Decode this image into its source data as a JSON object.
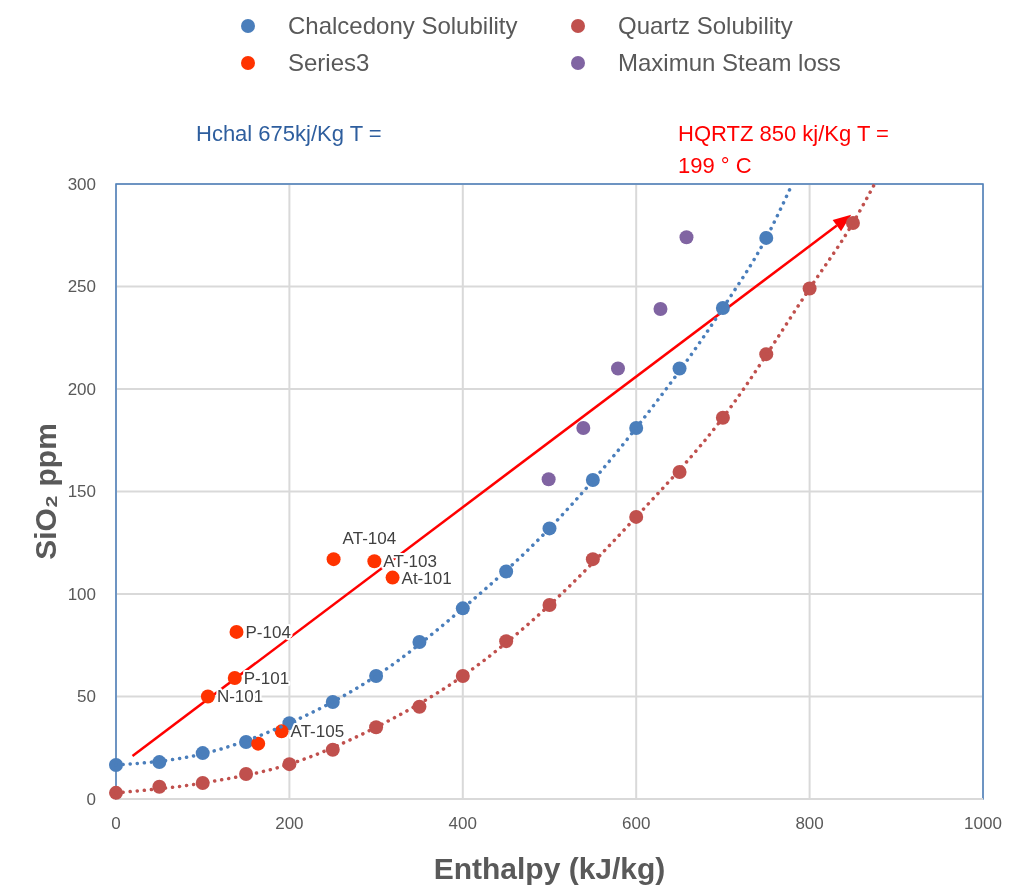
{
  "chart_data": {
    "type": "scatter",
    "xlabel": "Enthalpy (kJ/kg)",
    "ylabel": "SiO₂  ppm",
    "xlim": [
      0,
      1000
    ],
    "xticks": [
      0,
      200,
      400,
      600,
      800,
      1000
    ],
    "ylim": [
      0,
      300
    ],
    "yticks": [
      0,
      50,
      100,
      150,
      200,
      250,
      300
    ],
    "grid": true,
    "legend": "top",
    "marker": "circle",
    "annotations": [
      "Hchal 675kj/Kg  T =",
      "HQRTZ 850 kj/Kg  T = 199 ° C",
      {
        "text": "AT-104",
        "x": 251,
        "y": 117
      },
      {
        "text": "AT-103",
        "x": 298,
        "y": 116
      },
      {
        "text": "At-101",
        "x": 319,
        "y": 108
      },
      {
        "text": "P-104",
        "x": 139,
        "y": 81.5
      },
      {
        "text": "P-101",
        "x": 137,
        "y": 59
      },
      {
        "text": "N-101",
        "x": 106,
        "y": 50
      },
      {
        "text": "AT-105",
        "x": 191,
        "y": 33
      }
    ],
    "series": [
      {
        "name": "Chalcedony Solubility",
        "color": "#4a7ebb",
        "x": [
          0,
          50,
          100,
          150,
          200,
          250,
          300,
          350,
          400,
          450,
          500,
          550,
          600,
          650,
          700,
          750
        ],
        "values": [
          16.6,
          18,
          22.4,
          27.8,
          37,
          47.3,
          60,
          76.6,
          93,
          111,
          132,
          155.6,
          181,
          210,
          239.5,
          273.7
        ]
      },
      {
        "name": "Quartz Solubility",
        "color": "#c0504d",
        "x": [
          0,
          50,
          100,
          150,
          200,
          250,
          300,
          350,
          400,
          450,
          500,
          550,
          600,
          650,
          700,
          750,
          800,
          850
        ],
        "values": [
          3,
          6,
          7.8,
          12.2,
          17,
          24,
          35,
          45,
          60,
          77,
          94.6,
          117,
          137.6,
          159.5,
          186,
          217,
          249,
          281
        ]
      },
      {
        "name": "Series3",
        "color": "#ff3300",
        "x": [
          251,
          298,
          319,
          139,
          137,
          106,
          191,
          164
        ],
        "values": [
          117,
          116,
          108,
          81.5,
          59,
          50,
          33,
          27
        ]
      },
      {
        "name": "Maximun Steam loss",
        "color": "#8064a2",
        "x": [
          499,
          539,
          579,
          628,
          658
        ],
        "values": [
          156,
          181,
          210,
          239,
          274
        ]
      },
      {
        "type": "line",
        "line_style": "dotted",
        "marker": "none",
        "color": "#4a7ebb",
        "x": [
          0,
          100,
          200,
          300,
          400,
          500,
          600,
          700,
          750,
          780
        ],
        "values": [
          16.6,
          22,
          37,
          60,
          93,
          132,
          181,
          239.5,
          273.7,
          300
        ]
      },
      {
        "type": "line",
        "line_style": "dotted",
        "marker": "none",
        "color": "#c0504d",
        "x": [
          0,
          100,
          200,
          300,
          400,
          500,
          600,
          700,
          800,
          850,
          875
        ],
        "values": [
          3,
          7.8,
          17,
          35,
          60,
          94.6,
          137.6,
          186,
          249,
          281,
          300
        ]
      }
    ]
  }
}
